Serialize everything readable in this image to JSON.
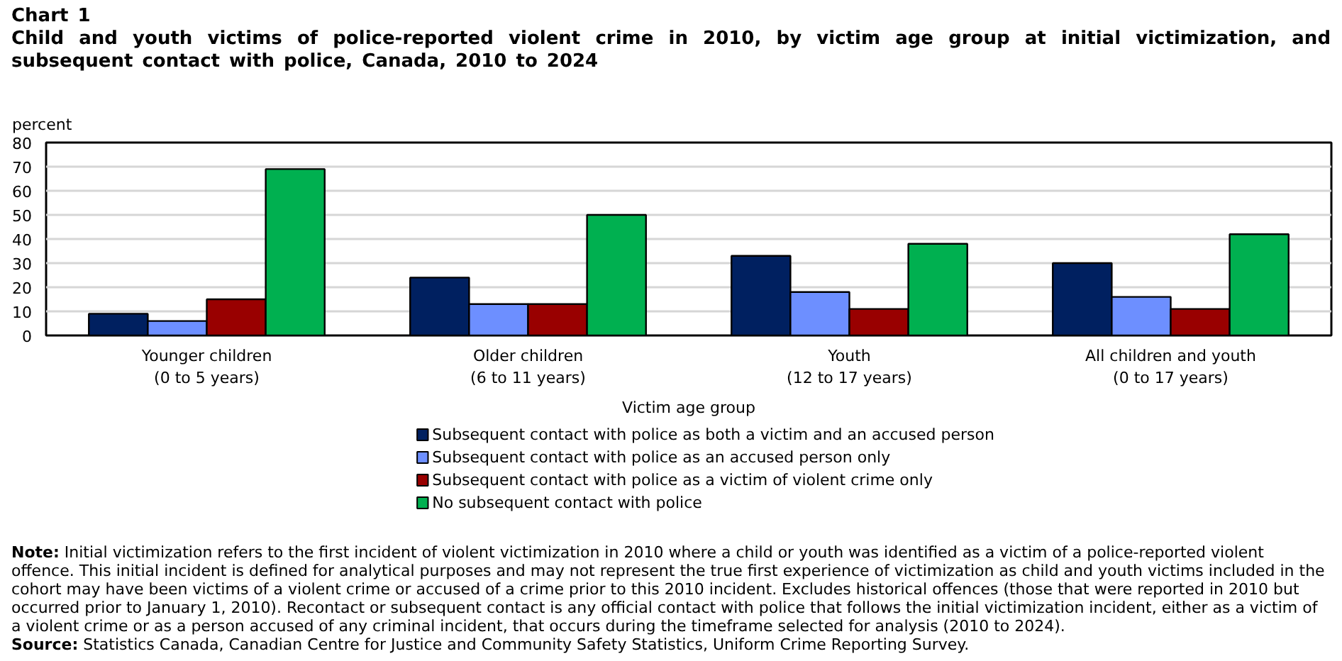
{
  "chart_data": {
    "type": "bar",
    "title": "Chart 1",
    "subtitle": "Child and youth victims of police-reported violent crime in 2010, by victim age group at initial victimization, and subsequent contact with police, Canada, 2010 to 2024",
    "xlabel": "Victim age group",
    "ylabel": "percent",
    "categories": [
      "Younger children (0 to 5 years)",
      "Older children (6 to 11 years)",
      "Youth (12 to 17 years)",
      "All children and youth (0 to 17 years)"
    ],
    "series": [
      {
        "name": "Subsequent contact with police as both a victim and an accused person",
        "color": "#002060",
        "values": [
          9,
          24,
          33,
          30
        ]
      },
      {
        "name": "Subsequent contact with police as an accused person only",
        "color": "#6d8fff",
        "values": [
          6,
          13,
          18,
          16
        ]
      },
      {
        "name": "Subsequent contact with police as a victim of violent crime only",
        "color": "#990000",
        "values": [
          15,
          13,
          11,
          11
        ]
      },
      {
        "name": "No subsequent contact with police",
        "color": "#00b050",
        "values": [
          69,
          50,
          38,
          42
        ]
      }
    ],
    "ylim": [
      0,
      80
    ],
    "yticks": [
      0,
      10,
      20,
      30,
      40,
      50,
      60,
      70,
      80
    ],
    "grid": "y",
    "legend": "bottom",
    "annotations": [
      "Note: Initial victimization refers to the first incident of violent victimization in 2010 where a child or youth was identified as a victim of a police-reported violent offence. This initial incident is defined for analytical purposes and may not represent the true first experience of victimization as child and youth victims included in the cohort may have been victims of a violent crime or accused of a crime prior to this 2010 incident. Excludes historical offences (those that were reported in 2010 but occurred prior to January 1, 2010). Recontact or subsequent contact is any official contact with police that follows the initial victimization incident, either as a victim of a violent crime or as a person accused of any criminal incident, that occurs during the timeframe selected for analysis (2010 to 2024).",
      "Source: Statistics Canada, Canadian Centre for Justice and Community Safety Statistics, Uniform Crime Reporting Survey."
    ]
  }
}
